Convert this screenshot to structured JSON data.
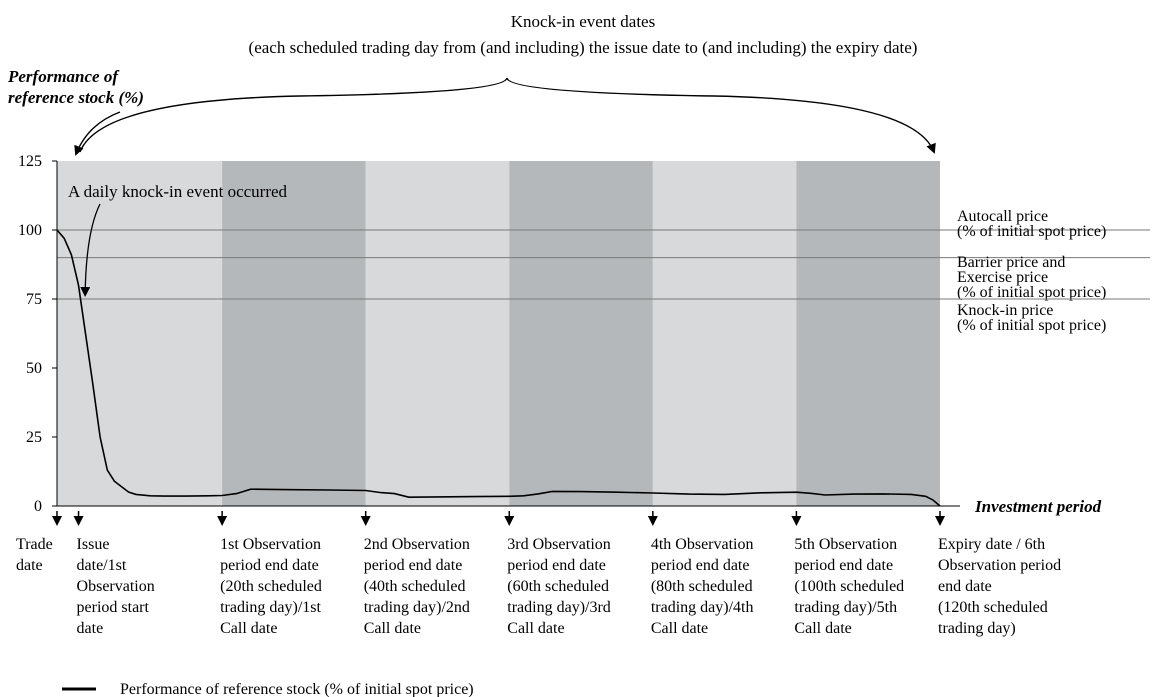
{
  "chart_data": {
    "type": "line",
    "header": {
      "title": "Knock-in event dates",
      "subtitle": "(each scheduled trading day from (and including) the issue date to (and including) the expiry date)"
    },
    "ylabel_lines": [
      "Performance of",
      "reference stock (%)"
    ],
    "xlabel": "Investment period",
    "ylim": [
      0,
      125
    ],
    "yticks": [
      0,
      25,
      50,
      75,
      100,
      125
    ],
    "xlim": [
      -3,
      120
    ],
    "grid": false,
    "observation_bands": [
      {
        "start": -3,
        "end": 20,
        "shade": "light"
      },
      {
        "start": 20,
        "end": 40,
        "shade": "dark"
      },
      {
        "start": 40,
        "end": 60,
        "shade": "light"
      },
      {
        "start": 60,
        "end": 80,
        "shade": "dark"
      },
      {
        "start": 80,
        "end": 100,
        "shade": "light"
      },
      {
        "start": 100,
        "end": 120,
        "shade": "dark"
      }
    ],
    "reference_lines": [
      {
        "value": 100,
        "label_lines": [
          "Autocall price",
          "(% of initial spot price)"
        ]
      },
      {
        "value": 90,
        "label_lines": [
          "Barrier price and",
          "Exercise price",
          "(% of initial spot price)"
        ]
      },
      {
        "value": 75,
        "label_lines": [
          "Knock-in price",
          "(% of initial spot price)"
        ]
      }
    ],
    "annotation": {
      "text": "A daily knock-in event occurred",
      "x": 0.5,
      "y": 75
    },
    "key_dates": [
      {
        "x": -3,
        "label_lines": [
          "Trade",
          "date"
        ]
      },
      {
        "x": 0,
        "label_lines": [
          "Issue",
          "date/1st",
          "Observation",
          "period start",
          "date"
        ]
      },
      {
        "x": 20,
        "label_lines": [
          "1st Observation",
          "period end date",
          "(20th scheduled",
          "trading day)/1st",
          "Call date"
        ]
      },
      {
        "x": 40,
        "label_lines": [
          "2nd Observation",
          "period end date",
          "(40th scheduled",
          "trading day)/2nd",
          "Call date"
        ]
      },
      {
        "x": 60,
        "label_lines": [
          "3rd Observation",
          "period end date",
          "(60th scheduled",
          "trading day)/3rd",
          "Call date"
        ]
      },
      {
        "x": 80,
        "label_lines": [
          "4th Observation",
          "period end date",
          "(80th scheduled",
          "trading day)/4th",
          "Call date"
        ]
      },
      {
        "x": 100,
        "label_lines": [
          "5th Observation",
          "period end date",
          "(100th scheduled",
          "trading day)/5th",
          "Call date"
        ]
      },
      {
        "x": 120,
        "label_lines": [
          "Expiry date / 6th",
          "Observation period",
          "end date",
          "(120th scheduled",
          "trading day)"
        ]
      }
    ],
    "series": [
      {
        "name": "Performance of reference stock (% of initial spot price)",
        "color": "#000000",
        "x": [
          -3,
          -2,
          -1,
          0,
          1,
          2,
          3,
          4,
          5,
          6,
          7,
          8,
          10,
          12,
          15,
          18,
          20,
          22,
          24,
          27,
          30,
          35,
          40,
          42,
          44,
          46,
          50,
          55,
          60,
          62,
          64,
          66,
          70,
          75,
          80,
          85,
          90,
          95,
          100,
          102,
          104,
          108,
          112,
          116,
          118,
          119,
          120
        ],
        "y": [
          100,
          97,
          91,
          80,
          62,
          44,
          25,
          13,
          9,
          7,
          5,
          4.2,
          3.7,
          3.6,
          3.6,
          3.7,
          3.8,
          4.5,
          6.1,
          6.0,
          5.9,
          5.8,
          5.6,
          4.9,
          4.5,
          3.2,
          3.3,
          3.4,
          3.5,
          3.7,
          4.4,
          5.3,
          5.2,
          5.0,
          4.7,
          4.3,
          4.2,
          4.8,
          5.0,
          4.6,
          4.0,
          4.3,
          4.4,
          4.2,
          3.5,
          2.2,
          0
        ]
      }
    ],
    "legend": {
      "position": "bottom-left"
    }
  }
}
